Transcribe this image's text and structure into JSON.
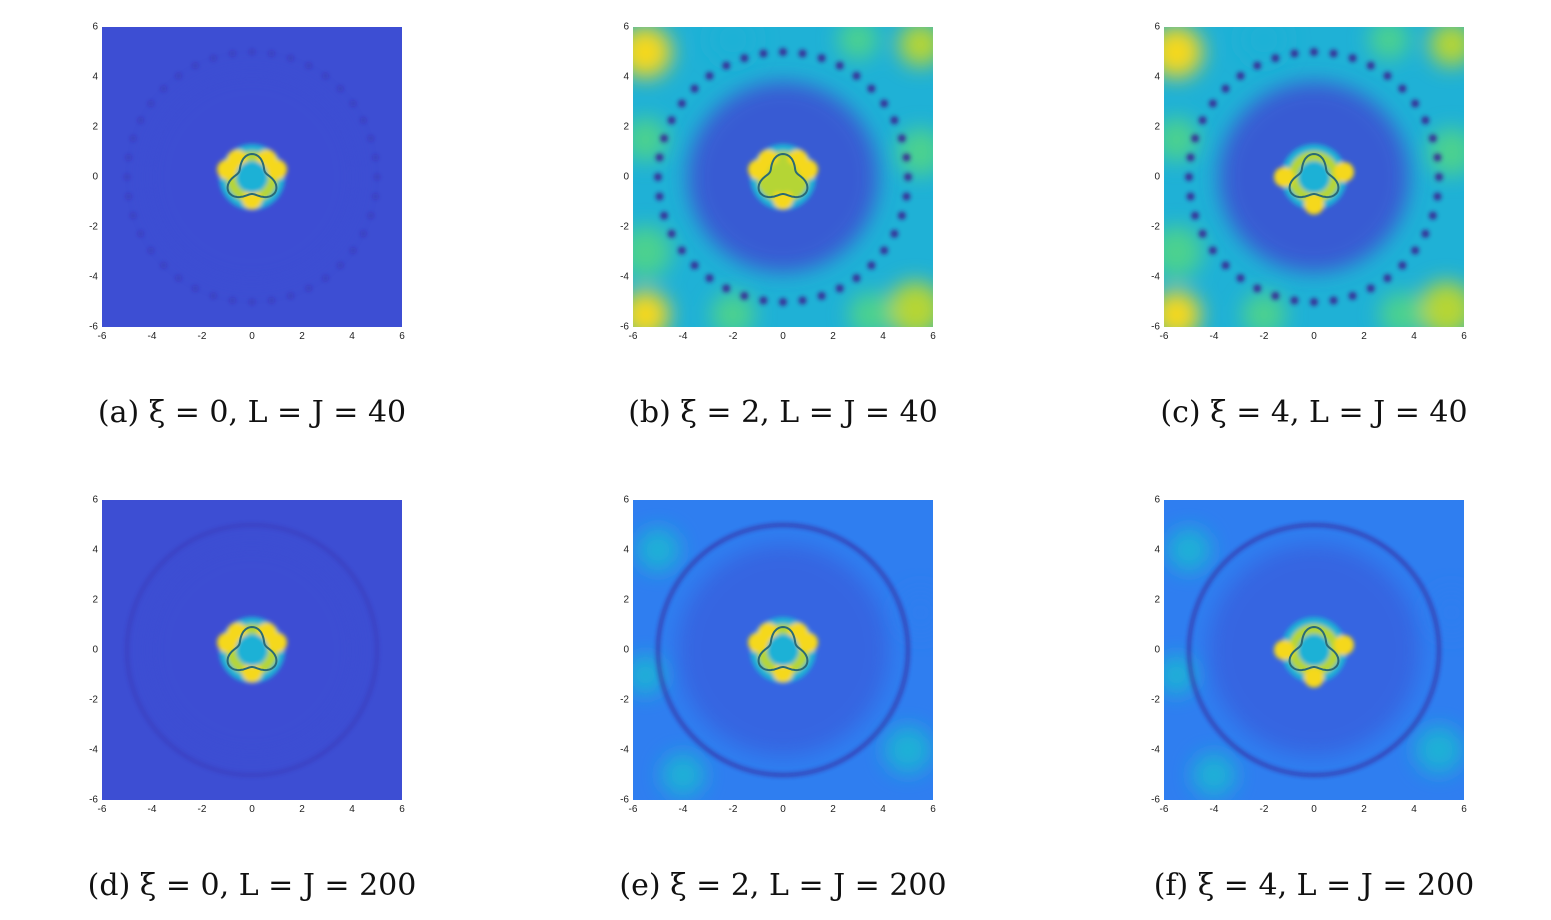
{
  "figure": {
    "panels": [
      {
        "id": "a",
        "caption": "(a) ξ = 0, L = J = 40",
        "xi": 0,
        "LJ": 40
      },
      {
        "id": "b",
        "caption": "(b) ξ = 2, L = J = 40",
        "xi": 2,
        "LJ": 40
      },
      {
        "id": "c",
        "caption": "(c) ξ = 4, L = J = 40",
        "xi": 4,
        "LJ": 40
      },
      {
        "id": "d",
        "caption": "(d) ξ = 0, L = J = 200",
        "xi": 0,
        "LJ": 200
      },
      {
        "id": "e",
        "caption": "(e) ξ = 2, L = J = 200",
        "xi": 2,
        "LJ": 200
      },
      {
        "id": "f",
        "caption": "(f) ξ = 4, L = J = 200",
        "xi": 4,
        "LJ": 200
      }
    ],
    "axes": {
      "xticks": [
        "-6",
        "-4",
        "-2",
        "0",
        "2",
        "4",
        "6"
      ],
      "yticks": [
        "6",
        "4",
        "2",
        "0",
        "-2",
        "-4",
        "-6"
      ],
      "xlim": [
        -6,
        6
      ],
      "ylim": [
        -6,
        6
      ]
    },
    "colormap": [
      "#3b1f8f",
      "#3d4ed3",
      "#2f7ef0",
      "#1fb1d6",
      "#4cd18f",
      "#b5d534",
      "#f5d81e"
    ]
  },
  "chart_data": [
    {
      "type": "heatmap",
      "xlim": [
        -6,
        6
      ],
      "ylim": [
        -6,
        6
      ],
      "caption": "(a) ξ = 0, L = J = 40"
    },
    {
      "type": "heatmap",
      "xlim": [
        -6,
        6
      ],
      "ylim": [
        -6,
        6
      ],
      "caption": "(b) ξ = 2, L = J = 40"
    },
    {
      "type": "heatmap",
      "xlim": [
        -6,
        6
      ],
      "ylim": [
        -6,
        6
      ],
      "caption": "(c) ξ = 4, L = J = 40"
    },
    {
      "type": "heatmap",
      "xlim": [
        -6,
        6
      ],
      "ylim": [
        -6,
        6
      ],
      "caption": "(d) ξ = 0, L = J = 200"
    },
    {
      "type": "heatmap",
      "xlim": [
        -6,
        6
      ],
      "ylim": [
        -6,
        6
      ],
      "caption": "(e) ξ = 2, L = J = 200"
    },
    {
      "type": "heatmap",
      "xlim": [
        -6,
        6
      ],
      "ylim": [
        -6,
        6
      ],
      "caption": "(f) ξ = 4, L = J = 200"
    }
  ]
}
